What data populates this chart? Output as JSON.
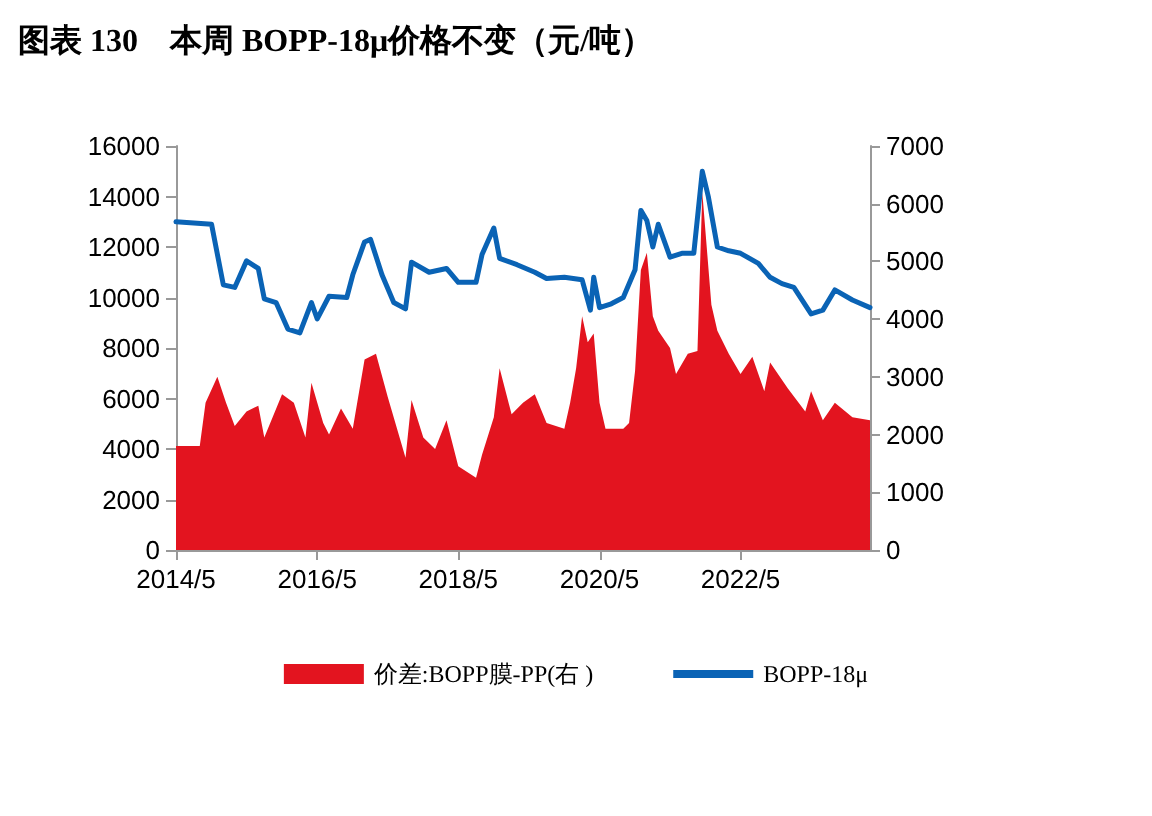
{
  "chart_data": {
    "type": "line",
    "title": "图表 130　本周 BOPP-18μ价格不变（元/吨）",
    "xlim": [
      "2014-05",
      "2024-03"
    ],
    "xticks": [
      {
        "value": "2014-05",
        "label": "2014/5"
      },
      {
        "value": "2016-05",
        "label": "2016/5"
      },
      {
        "value": "2018-05",
        "label": "2018/5"
      },
      {
        "value": "2020-05",
        "label": "2020/5"
      },
      {
        "value": "2022-05",
        "label": "2022/5"
      }
    ],
    "ylim": [
      0,
      16000
    ],
    "yticks": [
      0,
      2000,
      4000,
      6000,
      8000,
      10000,
      12000,
      14000,
      16000
    ],
    "y2lim": [
      0,
      7000
    ],
    "y2ticks": [
      0,
      1000,
      2000,
      3000,
      4000,
      5000,
      6000,
      7000
    ],
    "grid": false,
    "legend": "bottom",
    "marker": "none",
    "series": [
      {
        "name": "价差:BOPP膜-PP(右 )",
        "type": "area",
        "axis": "y2",
        "color": "#e3141f",
        "x": [
          "2014-05-01",
          "2014-09-01",
          "2014-10-01",
          "2014-12-01",
          "2015-01-15",
          "2015-03-01",
          "2015-05-01",
          "2015-07-01",
          "2015-08-01",
          "2015-11-01",
          "2016-01-01",
          "2016-03-01",
          "2016-04-01",
          "2016-06-01",
          "2016-07-01",
          "2016-09-01",
          "2016-11-01",
          "2017-01-01",
          "2017-03-01",
          "2017-05-01",
          "2017-08-01",
          "2017-09-01",
          "2017-11-01",
          "2018-01-01",
          "2018-03-01",
          "2018-05-01",
          "2018-08-01",
          "2018-09-01",
          "2018-11-01",
          "2018-12-01",
          "2019-02-01",
          "2019-04-01",
          "2019-06-01",
          "2019-08-01",
          "2019-11-01",
          "2019-12-01",
          "2020-01-01",
          "2020-02-01",
          "2020-03-01",
          "2020-04-01",
          "2020-05-01",
          "2020-06-01",
          "2020-09-01",
          "2020-10-01",
          "2020-11-01",
          "2020-12-01",
          "2021-01-01",
          "2021-02-01",
          "2021-03-01",
          "2021-05-01",
          "2021-06-01",
          "2021-08-01",
          "2021-09-20",
          "2021-10-15",
          "2021-12-01",
          "2022-01-01",
          "2022-03-01",
          "2022-05-01",
          "2022-07-01",
          "2022-09-01",
          "2022-10-01",
          "2023-01-01",
          "2023-04-01",
          "2023-05-01",
          "2023-07-01",
          "2023-09-01",
          "2023-12-01",
          "2024-03-01"
        ],
        "values": [
          1800,
          1800,
          2550,
          3000,
          2550,
          2150,
          2400,
          2500,
          1950,
          2700,
          2550,
          1950,
          2900,
          2200,
          2000,
          2450,
          2100,
          3300,
          3400,
          2650,
          1600,
          2600,
          1950,
          1750,
          2250,
          1450,
          1250,
          1650,
          2300,
          3150,
          2350,
          2550,
          2700,
          2200,
          2100,
          2550,
          3150,
          4050,
          3600,
          3750,
          2550,
          2100,
          2100,
          2200,
          3100,
          4850,
          5150,
          4050,
          3800,
          3500,
          3050,
          3400,
          3450,
          6200,
          4250,
          3800,
          3400,
          3050,
          3350,
          2750,
          3250,
          2800,
          2400,
          2750,
          2250,
          2550,
          2300,
          2250
        ]
      },
      {
        "name": "BOPP-18μ",
        "color": "#0a63b5",
        "x": [
          "2014-05-01",
          "2014-11-01",
          "2015-01-01",
          "2015-03-01",
          "2015-05-01",
          "2015-07-01",
          "2015-08-01",
          "2015-10-01",
          "2015-12-01",
          "2016-02-01",
          "2016-04-01",
          "2016-05-01",
          "2016-07-01",
          "2016-10-01",
          "2016-11-01",
          "2017-01-01",
          "2017-02-01",
          "2017-04-01",
          "2017-06-01",
          "2017-08-01",
          "2017-09-01",
          "2017-12-01",
          "2018-03-01",
          "2018-05-01",
          "2018-08-01",
          "2018-09-01",
          "2018-11-01",
          "2018-12-01",
          "2019-03-01",
          "2019-06-01",
          "2019-08-01",
          "2019-11-01",
          "2020-02-01",
          "2020-03-15",
          "2020-04-01",
          "2020-05-01",
          "2020-07-01",
          "2020-09-01",
          "2020-11-01",
          "2020-12-01",
          "2021-01-01",
          "2021-02-01",
          "2021-03-01",
          "2021-05-01",
          "2021-07-01",
          "2021-09-01",
          "2021-10-15",
          "2021-11-15",
          "2022-01-01",
          "2022-03-01",
          "2022-05-01",
          "2022-08-01",
          "2022-10-01",
          "2022-12-01",
          "2023-02-01",
          "2023-05-01",
          "2023-07-01",
          "2023-09-01",
          "2023-12-01",
          "2024-03-01"
        ],
        "values": [
          13000,
          12900,
          10500,
          10400,
          11450,
          11150,
          9950,
          9800,
          8750,
          8600,
          9800,
          9150,
          10050,
          10000,
          10900,
          12200,
          12300,
          10900,
          9800,
          9550,
          11400,
          11000,
          11150,
          10600,
          10600,
          11700,
          12750,
          11550,
          11300,
          11000,
          10750,
          10800,
          10700,
          9500,
          10800,
          9600,
          9750,
          10000,
          11100,
          13450,
          13050,
          12000,
          12900,
          11600,
          11750,
          11750,
          15000,
          14000,
          12000,
          11850,
          11750,
          11350,
          10800,
          10550,
          10400,
          9350,
          9500,
          10300,
          9900,
          9600
        ]
      }
    ]
  }
}
